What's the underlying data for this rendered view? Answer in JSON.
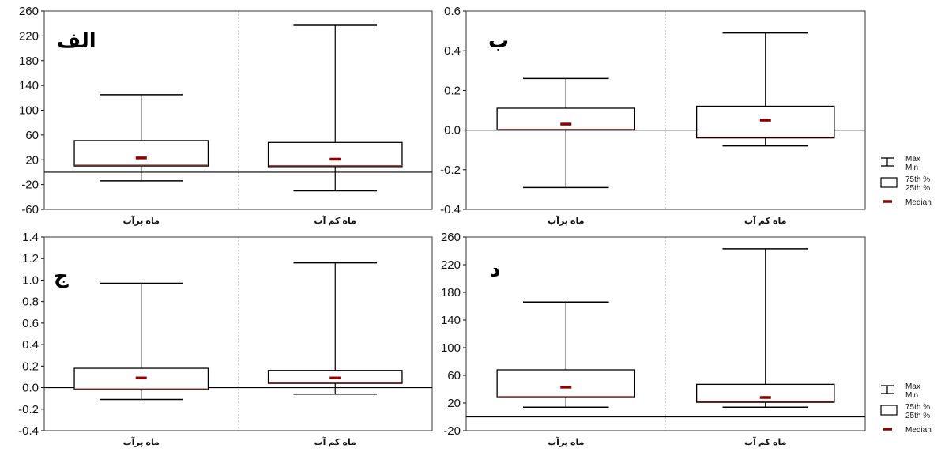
{
  "chart_data": [
    {
      "type": "box",
      "title": "الف",
      "ylim": [
        -60,
        260
      ],
      "yticks": [
        "260",
        "220",
        "180",
        "140",
        "100",
        "60",
        "20",
        "-20",
        "-60"
      ],
      "categories": [
        "ماه پرآب",
        "ماه کم آب"
      ],
      "boxes": [
        {
          "min": -14,
          "q1": 10,
          "median": 23,
          "q3": 51,
          "max": 125
        },
        {
          "min": -30,
          "q1": 9,
          "median": 21,
          "q3": 48,
          "max": 237
        }
      ],
      "reference_line": 0,
      "grid": true,
      "legend": ""
    },
    {
      "type": "box",
      "title": "ب",
      "ylim": [
        -0.4,
        0.6
      ],
      "yticks": [
        "0.6",
        "0.4",
        "0.2",
        "0.0",
        "-0.2",
        "-0.4"
      ],
      "categories": [
        "ماه پرآب",
        "ماه کم آب"
      ],
      "boxes": [
        {
          "min": -0.29,
          "q1": 0.0,
          "median": 0.03,
          "q3": 0.11,
          "max": 0.26
        },
        {
          "min": -0.08,
          "q1": -0.04,
          "median": 0.05,
          "q3": 0.12,
          "max": 0.49
        }
      ],
      "reference_line": 0,
      "grid": true,
      "legend": "right"
    },
    {
      "type": "box",
      "title": "ج",
      "ylim": [
        -0.4,
        1.4
      ],
      "yticks": [
        "1.4",
        "1.2",
        "1.0",
        "0.8",
        "0.6",
        "0.4",
        "0.2",
        "0.0",
        "-0.2",
        "-0.4"
      ],
      "categories": [
        "ماه پرآب",
        "ماه کم آب"
      ],
      "boxes": [
        {
          "min": -0.11,
          "q1": -0.02,
          "median": 0.09,
          "q3": 0.18,
          "max": 0.97
        },
        {
          "min": -0.06,
          "q1": 0.04,
          "median": 0.09,
          "q3": 0.16,
          "max": 1.16
        }
      ],
      "reference_line": 0,
      "grid": true,
      "legend": ""
    },
    {
      "type": "box",
      "title": "د",
      "ylim": [
        -20,
        260
      ],
      "yticks": [
        "260",
        "220",
        "180",
        "140",
        "100",
        "60",
        "20",
        "-20"
      ],
      "categories": [
        "ماه پرآب",
        "ماه کم آب"
      ],
      "boxes": [
        {
          "min": 14,
          "q1": 28,
          "median": 43,
          "q3": 68,
          "max": 166
        },
        {
          "min": 14,
          "q1": 21,
          "median": 28,
          "q3": 47,
          "max": 243
        }
      ],
      "reference_line": 0,
      "grid": true,
      "legend": "right"
    }
  ],
  "legend": {
    "whisker_top": "Max",
    "whisker_bottom": "Min",
    "box_top": "75th %",
    "box_bottom": "25th %",
    "median": "Median"
  },
  "colors": {
    "median": "#8b0000",
    "box_edge": "#000000",
    "box_edge_inner": "#8b0000",
    "grid": "#d0d0d0",
    "axis": "#000000"
  }
}
